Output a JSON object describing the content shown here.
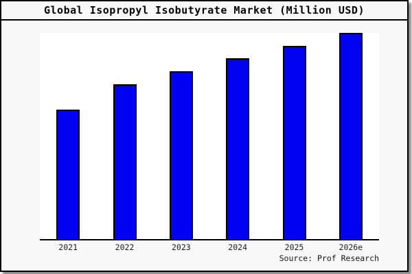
{
  "frame": {
    "border_color": "#000000",
    "page_background": "#f8f8f8",
    "plot_background": "#ffffff"
  },
  "source": {
    "label": "Source: Prof Research"
  },
  "chart_data": {
    "type": "bar",
    "title": "Global Isopropyl Isobutyrate Market (Million USD)",
    "categories": [
      "2021",
      "2022",
      "2023",
      "2024",
      "2025",
      "2026e"
    ],
    "values": [
      62.8,
      75.1,
      81.4,
      87.7,
      93.7,
      100
    ],
    "value_note": "y-axis is unlabeled; values are bar heights normalized to 2026e = 100",
    "xlabel": "",
    "ylabel": "",
    "y_axis_ticks": "none",
    "grid": false,
    "legend": "none",
    "bar_color": "#0101f2",
    "bar_border_color": "#000000"
  }
}
